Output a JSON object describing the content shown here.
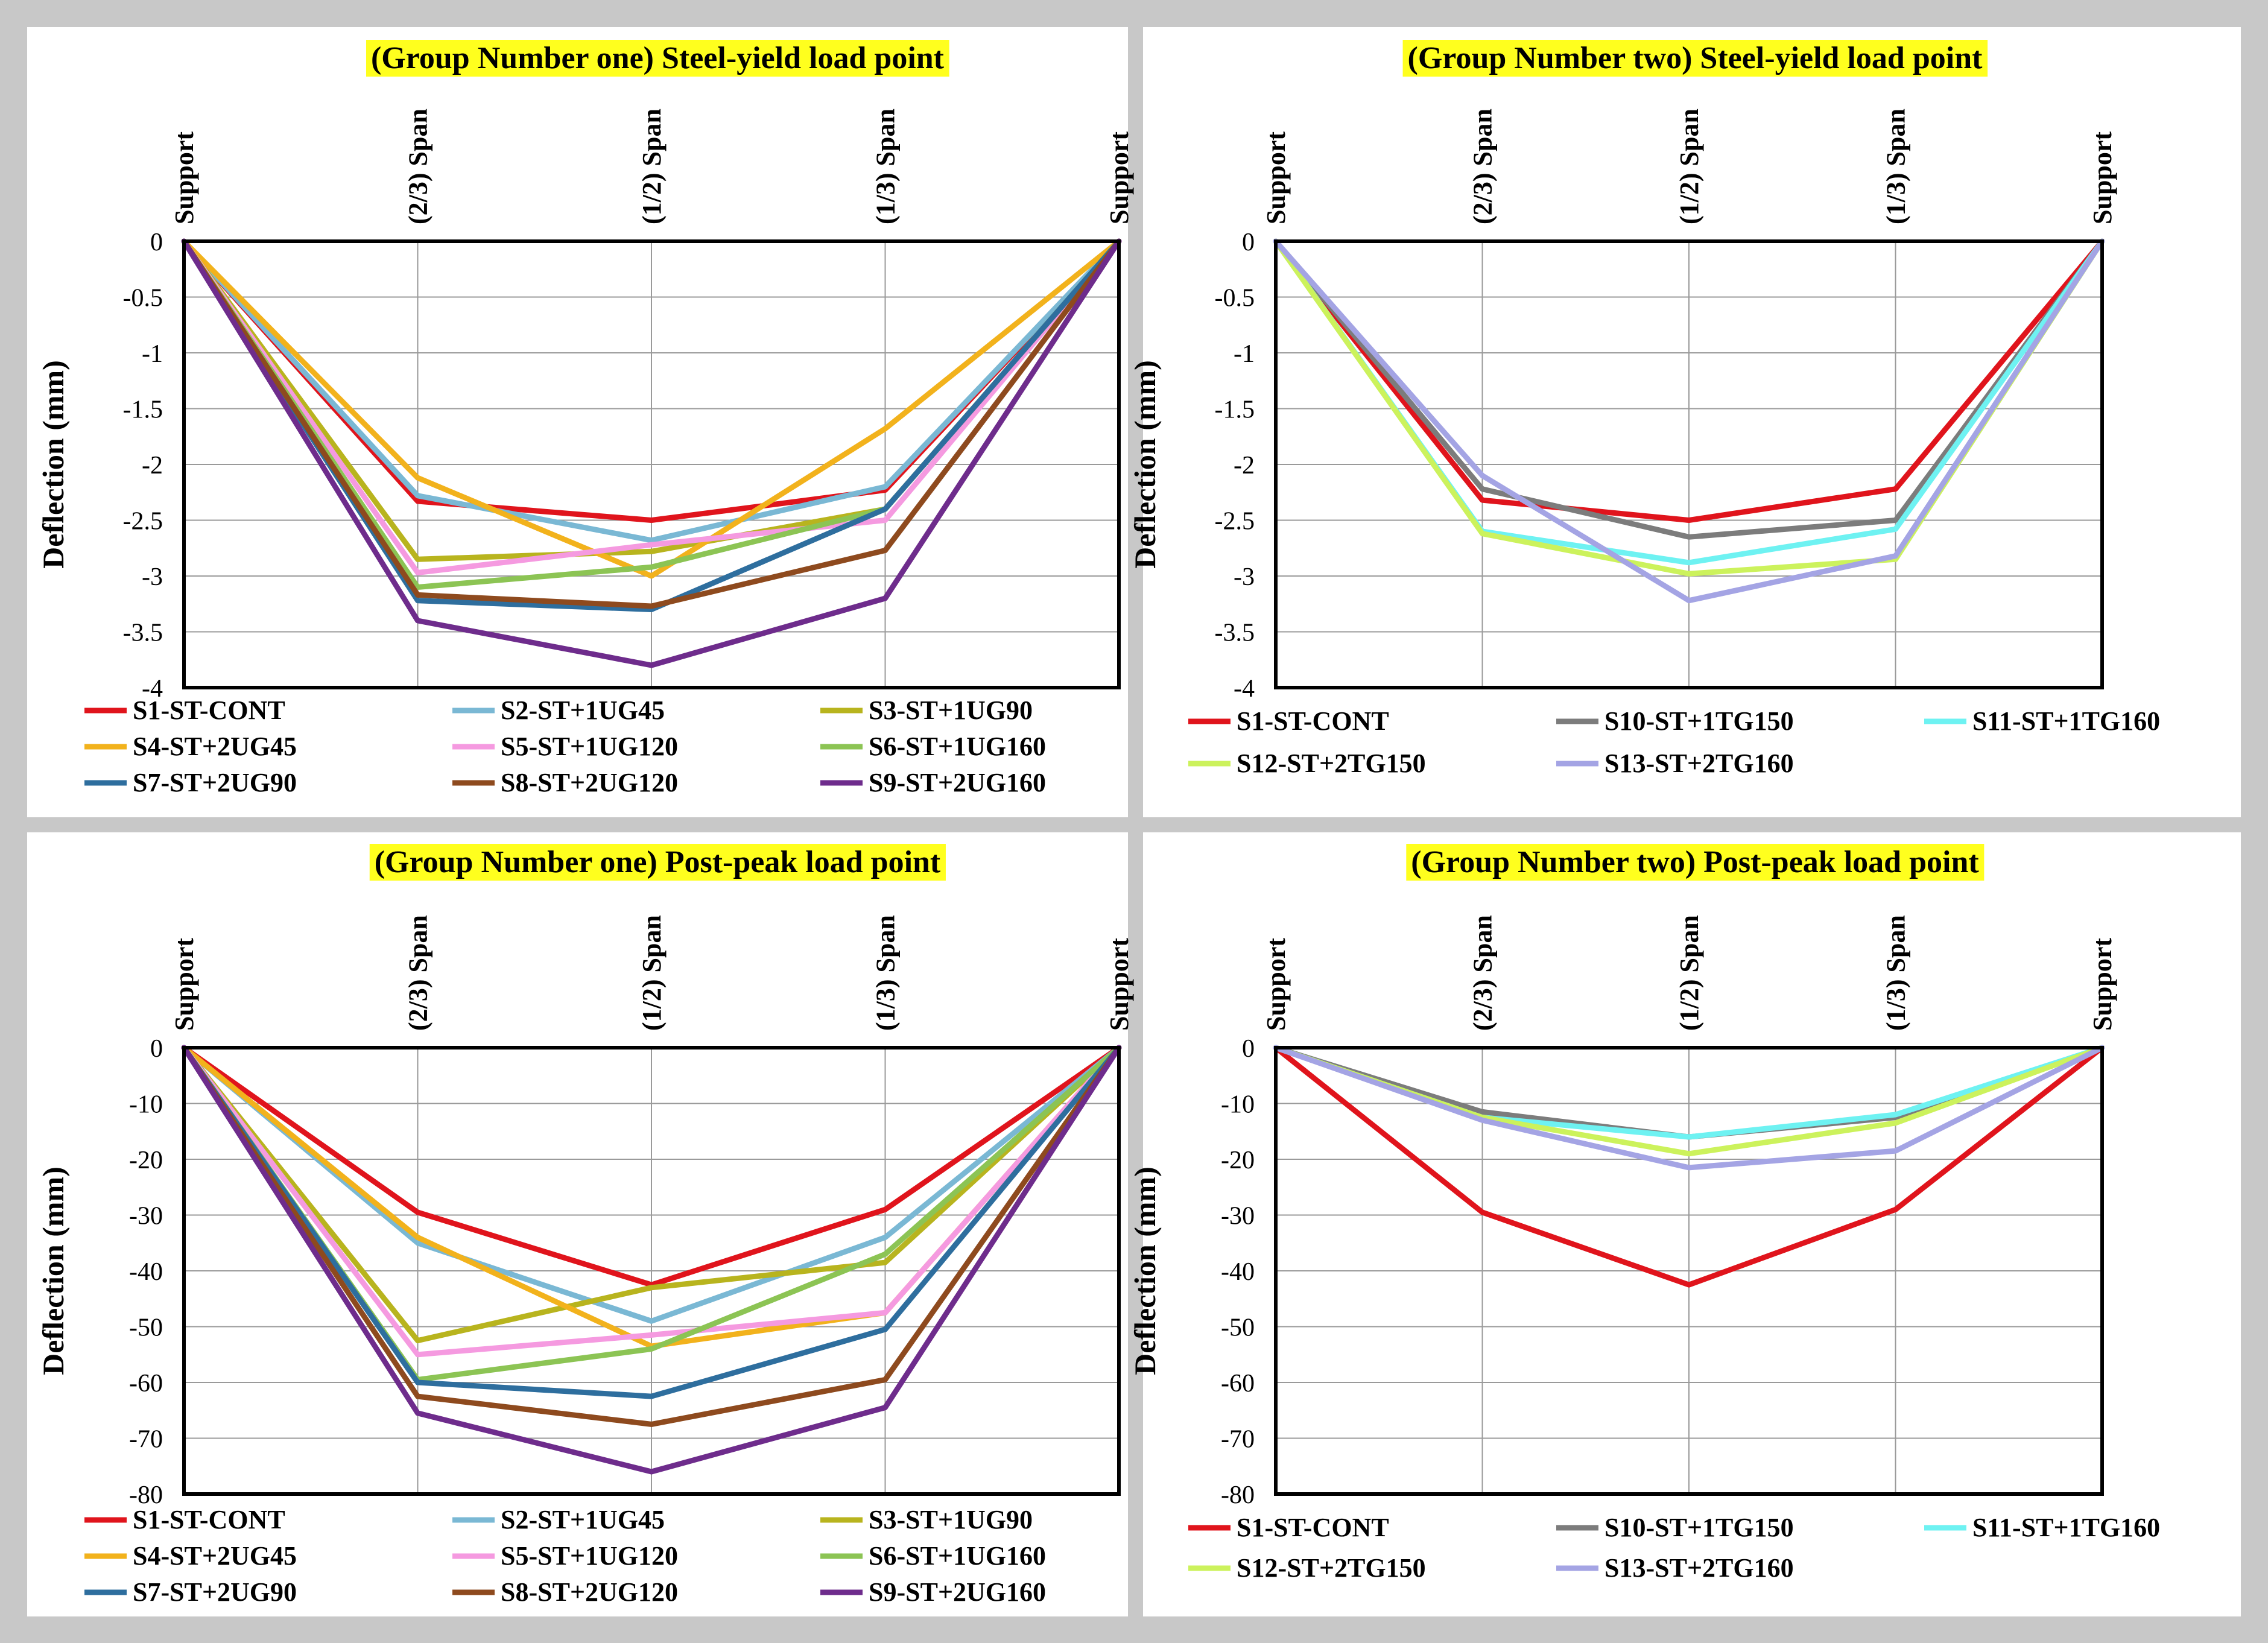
{
  "colors": {
    "S1-ST-CONT": "#e0141c",
    "S2-ST+1UG45": "#7ab8d4",
    "S3-ST+1UG90": "#b8b41e",
    "S4-ST+2UG45": "#f2b21c",
    "S5-ST+1UG120": "#f59ae0",
    "S6-ST+1UG160": "#8cc454",
    "S7-ST+2UG90": "#2e6e9e",
    "S8-ST+2UG120": "#8e4a1e",
    "S9-ST+2UG160": "#6e2c8c",
    "S10-ST+1TG150": "#7c7c7c",
    "S11-ST+1TG160": "#6ef2f2",
    "S12-ST+2TG150": "#ccf25c",
    "S13-ST+2TG160": "#a4a4e4",
    "title_highlight": "#ffff1e"
  },
  "chart_data": [
    {
      "type": "line",
      "title": "(Group Number one) Steel-yield load point",
      "ylabel": "Deflection (mm)",
      "categories": [
        "Support",
        "(2/3) Span",
        "(1/2) Span",
        "(1/3) Span",
        "Support"
      ],
      "ylim": [
        -4,
        0
      ],
      "yticks": [
        0,
        -0.5,
        -1,
        -1.5,
        -2,
        -2.5,
        -3,
        -3.5,
        -4
      ],
      "ytick_labels": [
        "0",
        "-0.5",
        "-1",
        "-1.5",
        "-2",
        "-2.5",
        "-3",
        "-3.5",
        "-4"
      ],
      "legend_columns": 3,
      "series": [
        {
          "name": "S1-ST-CONT",
          "values": [
            0,
            -2.33,
            -2.5,
            -2.23,
            0
          ]
        },
        {
          "name": "S2-ST+1UG45",
          "values": [
            0,
            -2.28,
            -2.68,
            -2.2,
            0
          ]
        },
        {
          "name": "S3-ST+1UG90",
          "values": [
            0,
            -2.85,
            -2.78,
            -2.4,
            0
          ]
        },
        {
          "name": "S4-ST+2UG45",
          "values": [
            0,
            -2.12,
            -3.0,
            -1.68,
            0
          ]
        },
        {
          "name": "S5-ST+1UG120",
          "values": [
            0,
            -2.97,
            -2.72,
            -2.5,
            0
          ]
        },
        {
          "name": "S6-ST+1UG160",
          "values": [
            0,
            -3.1,
            -2.92,
            -2.4,
            0
          ]
        },
        {
          "name": "S7-ST+2UG90",
          "values": [
            0,
            -3.22,
            -3.3,
            -2.4,
            0
          ]
        },
        {
          "name": "S8-ST+2UG120",
          "values": [
            0,
            -3.17,
            -3.27,
            -2.77,
            0
          ]
        },
        {
          "name": "S9-ST+2UG160",
          "values": [
            0,
            -3.4,
            -3.8,
            -3.2,
            0
          ]
        }
      ]
    },
    {
      "type": "line",
      "title": "(Group Number two) Steel-yield load point",
      "ylabel": "Deflection (mm)",
      "categories": [
        "Support",
        "(2/3) Span",
        "(1/2) Span",
        "(1/3) Span",
        "Support"
      ],
      "ylim": [
        -4,
        0
      ],
      "yticks": [
        0,
        -0.5,
        -1,
        -1.5,
        -2,
        -2.5,
        -3,
        -3.5,
        -4
      ],
      "ytick_labels": [
        "0",
        "-0.5",
        "-1",
        "-1.5",
        "-2",
        "-2.5",
        "-3",
        "-3.5",
        "-4"
      ],
      "legend_columns": 3,
      "series": [
        {
          "name": "S1-ST-CONT",
          "values": [
            0,
            -2.32,
            -2.5,
            -2.22,
            0
          ]
        },
        {
          "name": "S10-ST+1TG150",
          "values": [
            0,
            -2.22,
            -2.65,
            -2.5,
            0
          ]
        },
        {
          "name": "S11-ST+1TG160",
          "values": [
            0,
            -2.6,
            -2.88,
            -2.58,
            0
          ]
        },
        {
          "name": "S12-ST+2TG150",
          "values": [
            0,
            -2.62,
            -2.98,
            -2.85,
            0
          ]
        },
        {
          "name": "S13-ST+2TG160",
          "values": [
            0,
            -2.1,
            -3.22,
            -2.82,
            0
          ]
        }
      ]
    },
    {
      "type": "line",
      "title": "(Group Number one) Post-peak load point",
      "ylabel": "Deflection (mm)",
      "categories": [
        "Support",
        "(2/3) Span",
        "(1/2) Span",
        "(1/3) Span",
        "Support"
      ],
      "ylim": [
        -80,
        0
      ],
      "yticks": [
        0,
        -10,
        -20,
        -30,
        -40,
        -50,
        -60,
        -70,
        -80
      ],
      "ytick_labels": [
        "0",
        "-10",
        "-20",
        "-30",
        "-40",
        "-50",
        "-60",
        "-70",
        "-80"
      ],
      "legend_columns": 3,
      "series": [
        {
          "name": "S1-ST-CONT",
          "values": [
            0,
            -29.5,
            -42.5,
            -29,
            0
          ]
        },
        {
          "name": "S2-ST+1UG45",
          "values": [
            0,
            -35,
            -49,
            -34,
            0
          ]
        },
        {
          "name": "S3-ST+1UG90",
          "values": [
            0,
            -52.5,
            -43,
            -38.5,
            0
          ]
        },
        {
          "name": "S4-ST+2UG45",
          "values": [
            0,
            -34,
            -53.5,
            -47.5,
            0
          ]
        },
        {
          "name": "S5-ST+1UG120",
          "values": [
            0,
            -55,
            -51.5,
            -47.5,
            0
          ]
        },
        {
          "name": "S6-ST+1UG160",
          "values": [
            0,
            -59.5,
            -54,
            -37,
            0
          ]
        },
        {
          "name": "S7-ST+2UG90",
          "values": [
            0,
            -60,
            -62.5,
            -50.5,
            0
          ]
        },
        {
          "name": "S8-ST+2UG120",
          "values": [
            0,
            -62.5,
            -67.5,
            -59.5,
            0
          ]
        },
        {
          "name": "S9-ST+2UG160",
          "values": [
            0,
            -65.5,
            -76,
            -64.5,
            0
          ]
        }
      ]
    },
    {
      "type": "line",
      "title": "(Group Number two) Post-peak load point",
      "ylabel": "Deflection (mm)",
      "categories": [
        "Support",
        "(2/3) Span",
        "(1/2) Span",
        "(1/3) Span",
        "Support"
      ],
      "ylim": [
        -80,
        0
      ],
      "yticks": [
        0,
        -10,
        -20,
        -30,
        -40,
        -50,
        -60,
        -70,
        -80
      ],
      "ytick_labels": [
        "0",
        "-10",
        "-20",
        "-30",
        "-40",
        "-50",
        "-60",
        "-70",
        "-80"
      ],
      "legend_columns": 3,
      "series": [
        {
          "name": "S1-ST-CONT",
          "values": [
            0,
            -29.5,
            -42.5,
            -29,
            0
          ]
        },
        {
          "name": "S10-ST+1TG150",
          "values": [
            0,
            -11.5,
            -16,
            -12.5,
            0
          ]
        },
        {
          "name": "S11-ST+1TG160",
          "values": [
            0,
            -12.5,
            -16,
            -12,
            0
          ]
        },
        {
          "name": "S12-ST+2TG150",
          "values": [
            0,
            -12.5,
            -19,
            -13.5,
            0
          ]
        },
        {
          "name": "S13-ST+2TG160",
          "values": [
            0,
            -13,
            -21.5,
            -18.5,
            0
          ]
        }
      ]
    }
  ]
}
